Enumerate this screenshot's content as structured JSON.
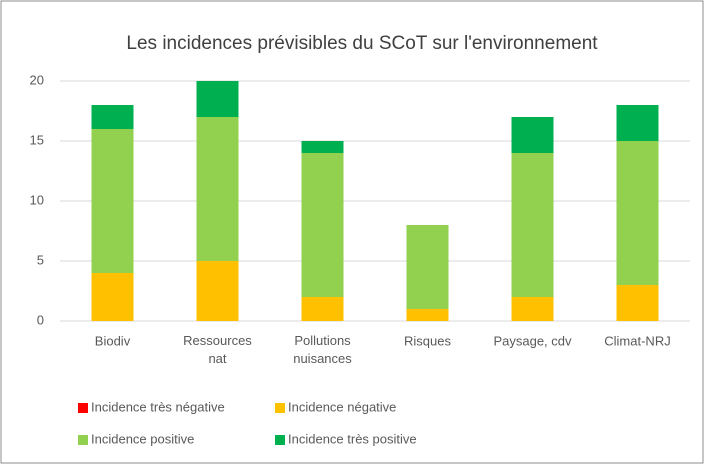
{
  "chart_data": {
    "type": "stacked_bar",
    "title": "Les incidences prévisibles du SCoT sur l'environnement",
    "categories": [
      "Biodiv",
      "Ressources nat",
      "Pollutions nuisances",
      "Risques",
      "Paysage, cdv",
      "Climat-NRJ"
    ],
    "series": [
      {
        "name": "Incidence très négative",
        "color": "#ff0000",
        "values": [
          0,
          0,
          0,
          0,
          0,
          0
        ]
      },
      {
        "name": "Incidence  négative",
        "color": "#ffc000",
        "values": [
          4,
          5,
          2,
          1,
          2,
          3
        ]
      },
      {
        "name": "Incidence positive",
        "color": "#92d050",
        "values": [
          12,
          12,
          12,
          7,
          12,
          12
        ]
      },
      {
        "name": "Incidence très positive",
        "color": "#00b050",
        "values": [
          2,
          3,
          1,
          0,
          3,
          3
        ]
      }
    ],
    "ylim": [
      0,
      20
    ],
    "yticks": [
      0,
      5,
      10,
      15,
      20
    ],
    "grid": true
  }
}
